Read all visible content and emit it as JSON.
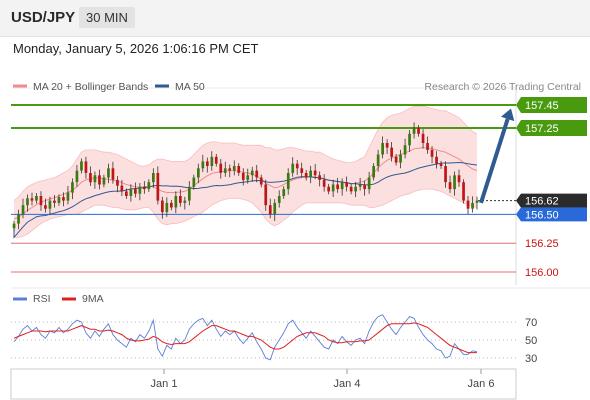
{
  "header": {
    "symbol": "USD/JPY",
    "timeframe": "30 MIN",
    "datetime": "Monday, January 5, 2026 1:06:16 PM CET"
  },
  "legend": {
    "ma20_label": "MA 20 + Bollinger Bands",
    "ma50_label": "MA 50",
    "credit": "Research © 2026 Trading Central",
    "ma20_color": "#f28b8b",
    "ma50_color": "#2f5a92"
  },
  "rsi_legend": {
    "rsi_label": "RSI",
    "ma_label": "9MA",
    "rsi_color": "#5b7fd6",
    "ma_color": "#e02020"
  },
  "colors": {
    "resistance": "#4a9a10",
    "support": "#2a6ad8",
    "target_line": "#e07070",
    "arrow": "#2f5a92",
    "candle_up": "#3a7a10",
    "candle_down": "#c01515"
  },
  "chart_data": {
    "type": "candlestick",
    "ylim": [
      155.9,
      157.55
    ],
    "x_ticks": [
      "Jan 1",
      "Jan 4",
      "Jan 6"
    ],
    "current_price": 156.62,
    "levels": [
      {
        "value": 157.45,
        "label": "157.45",
        "kind": "resistance"
      },
      {
        "value": 157.25,
        "label": "157.25",
        "kind": "resistance"
      },
      {
        "value": 156.62,
        "label": "156.62",
        "kind": "current"
      },
      {
        "value": 156.5,
        "label": "156.50",
        "kind": "pivot"
      },
      {
        "value": 156.25,
        "label": "156.25",
        "kind": "support"
      },
      {
        "value": 156.0,
        "label": "156.00",
        "kind": "support"
      }
    ],
    "arrow": {
      "from": 156.6,
      "to": 157.42
    },
    "close": [
      156.42,
      156.5,
      156.58,
      156.64,
      156.62,
      156.66,
      156.58,
      156.55,
      156.62,
      156.6,
      156.65,
      156.62,
      156.69,
      156.78,
      156.88,
      156.96,
      156.86,
      156.78,
      156.84,
      156.76,
      156.82,
      156.9,
      156.8,
      156.75,
      156.7,
      156.66,
      156.72,
      156.68,
      156.74,
      156.72,
      156.78,
      156.86,
      156.62,
      156.52,
      156.6,
      156.56,
      156.66,
      156.6,
      156.62,
      156.74,
      156.82,
      156.9,
      156.96,
      156.92,
      157.0,
      156.94,
      156.86,
      156.9,
      156.88,
      156.92,
      156.86,
      156.8,
      156.84,
      156.88,
      156.82,
      156.76,
      156.58,
      156.5,
      156.6,
      156.66,
      156.72,
      156.86,
      156.94,
      156.9,
      156.86,
      156.82,
      156.88,
      156.84,
      156.8,
      156.74,
      156.7,
      156.76,
      156.72,
      156.78,
      156.74,
      156.7,
      156.74,
      156.76,
      156.72,
      156.82,
      156.92,
      157.02,
      157.12,
      157.08,
      157.0,
      156.95,
      157.02,
      157.1,
      157.2,
      157.25,
      157.2,
      157.12,
      157.06,
      157.0,
      156.94,
      156.92,
      156.78,
      156.72,
      156.84,
      156.78,
      156.62,
      156.55,
      156.6,
      156.62
    ],
    "bb_upper": [
      156.62,
      156.65,
      156.7,
      156.74,
      156.76,
      156.78,
      156.79,
      156.8,
      156.81,
      156.82,
      156.84,
      156.86,
      156.88,
      156.92,
      156.98,
      157.04,
      157.06,
      157.06,
      157.06,
      157.05,
      157.04,
      157.04,
      157.03,
      157.02,
      157.0,
      156.98,
      156.96,
      156.94,
      156.92,
      156.92,
      156.93,
      156.96,
      156.98,
      156.98,
      156.97,
      156.96,
      156.96,
      156.96,
      156.96,
      156.98,
      157.02,
      157.06,
      157.1,
      157.12,
      157.13,
      157.13,
      157.12,
      157.12,
      157.12,
      157.12,
      157.11,
      157.1,
      157.1,
      157.1,
      157.1,
      157.1,
      157.08,
      157.08,
      157.06,
      157.06,
      157.07,
      157.08,
      157.08,
      157.07,
      157.06,
      157.05,
      157.05,
      157.04,
      157.04,
      157.02,
      157.0,
      156.98,
      156.97,
      156.96,
      156.95,
      156.95,
      156.96,
      156.98,
      157.0,
      157.08,
      157.16,
      157.24,
      157.3,
      157.34,
      157.36,
      157.37,
      157.38,
      157.4,
      157.42,
      157.44,
      157.44,
      157.44,
      157.43,
      157.42,
      157.41,
      157.4,
      157.4,
      157.38,
      157.36,
      157.34,
      157.3,
      157.26,
      157.22,
      157.2
    ],
    "bb_lower": [
      156.3,
      156.3,
      156.31,
      156.33,
      156.36,
      156.39,
      156.42,
      156.44,
      156.46,
      156.47,
      156.48,
      156.49,
      156.5,
      156.5,
      156.5,
      156.52,
      156.54,
      156.56,
      156.58,
      156.58,
      156.58,
      156.57,
      156.56,
      156.56,
      156.55,
      156.54,
      156.54,
      156.54,
      156.55,
      156.56,
      156.56,
      156.52,
      156.46,
      156.42,
      156.41,
      156.42,
      156.42,
      156.43,
      156.44,
      156.46,
      156.48,
      156.5,
      156.52,
      156.55,
      156.58,
      156.6,
      156.62,
      156.63,
      156.64,
      156.64,
      156.64,
      156.63,
      156.62,
      156.6,
      156.56,
      156.52,
      156.46,
      156.42,
      156.4,
      156.42,
      156.45,
      156.48,
      156.52,
      156.55,
      156.58,
      156.6,
      156.6,
      156.6,
      156.6,
      156.6,
      156.6,
      156.6,
      156.6,
      156.6,
      156.59,
      156.58,
      156.58,
      156.58,
      156.58,
      156.56,
      156.56,
      156.57,
      156.58,
      156.6,
      156.62,
      156.64,
      156.66,
      156.67,
      156.68,
      156.7,
      156.71,
      156.72,
      156.72,
      156.72,
      156.71,
      156.7,
      156.68,
      156.66,
      156.64,
      156.62,
      156.6,
      156.58,
      156.57,
      156.56
    ]
  },
  "rsi_data": {
    "type": "line",
    "ylim": [
      20,
      80
    ],
    "levels": [
      70,
      50,
      30
    ],
    "rsi": [
      48,
      54,
      62,
      66,
      60,
      64,
      56,
      52,
      60,
      58,
      64,
      58,
      62,
      68,
      72,
      70,
      58,
      52,
      60,
      54,
      62,
      68,
      56,
      50,
      46,
      42,
      52,
      48,
      56,
      52,
      60,
      72,
      40,
      32,
      44,
      40,
      52,
      46,
      50,
      62,
      68,
      72,
      74,
      66,
      72,
      62,
      54,
      60,
      56,
      60,
      52,
      46,
      52,
      58,
      48,
      40,
      30,
      28,
      42,
      50,
      58,
      68,
      72,
      64,
      58,
      52,
      60,
      54,
      48,
      42,
      40,
      50,
      46,
      54,
      48,
      44,
      50,
      52,
      46,
      60,
      70,
      76,
      78,
      70,
      62,
      56,
      64,
      70,
      76,
      74,
      64,
      56,
      50,
      46,
      40,
      38,
      30,
      32,
      46,
      40,
      34,
      34,
      38,
      37
    ],
    "ma": [
      52,
      54,
      56,
      58,
      60,
      60,
      60,
      59,
      60,
      60,
      60,
      60,
      60,
      62,
      64,
      66,
      64,
      62,
      62,
      60,
      60,
      61,
      60,
      58,
      56,
      52,
      50,
      49,
      49,
      50,
      51,
      54,
      52,
      48,
      46,
      45,
      46,
      46,
      46,
      48,
      52,
      56,
      60,
      63,
      66,
      66,
      64,
      62,
      60,
      60,
      58,
      56,
      54,
      54,
      52,
      50,
      46,
      42,
      40,
      40,
      42,
      46,
      50,
      54,
      56,
      58,
      58,
      58,
      56,
      54,
      50,
      48,
      47,
      47,
      48,
      48,
      48,
      49,
      49,
      50,
      54,
      58,
      62,
      66,
      68,
      68,
      68,
      68,
      68,
      69,
      68,
      66,
      64,
      60,
      56,
      52,
      48,
      44,
      42,
      40,
      38,
      36,
      36,
      36
    ]
  }
}
